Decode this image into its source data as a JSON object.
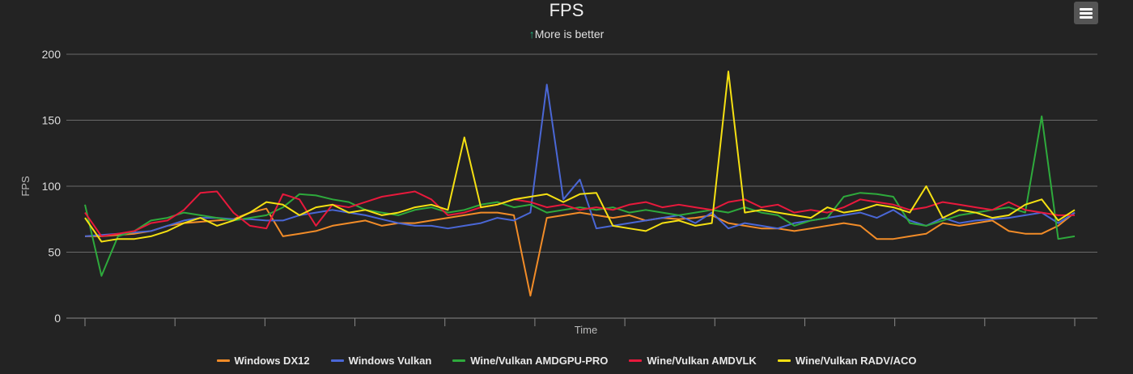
{
  "chart_data": {
    "type": "line",
    "title": "FPS",
    "subtitle": "More is better",
    "subtitle_icon": "arrow-up-icon",
    "xlabel": "Time",
    "ylabel": "FPS",
    "ylim": [
      0,
      200
    ],
    "yticks": [
      0,
      50,
      100,
      150,
      200
    ],
    "grid": true,
    "legend_position": "bottom",
    "series": [
      {
        "name": "Windows DX12",
        "color": "#f28c28",
        "values": [
          62,
          62,
          63,
          64,
          66,
          70,
          72,
          73,
          74,
          75,
          80,
          83,
          62,
          64,
          66,
          70,
          72,
          74,
          70,
          72,
          72,
          74,
          76,
          78,
          80,
          80,
          78,
          17,
          76,
          78,
          80,
          78,
          76,
          78,
          74,
          76,
          75,
          76,
          78,
          72,
          70,
          68,
          68,
          66,
          68,
          70,
          72,
          70,
          60,
          60,
          62,
          64,
          72,
          70,
          72,
          74,
          66,
          64,
          64,
          70,
          80
        ]
      },
      {
        "name": "Windows Vulkan",
        "color": "#4a67d6",
        "values": [
          62,
          63,
          64,
          65,
          66,
          70,
          74,
          76,
          76,
          75,
          75,
          74,
          74,
          78,
          80,
          82,
          80,
          78,
          75,
          72,
          70,
          70,
          68,
          70,
          72,
          76,
          74,
          80,
          177,
          90,
          105,
          68,
          70,
          72,
          74,
          76,
          78,
          72,
          80,
          68,
          72,
          70,
          68,
          72,
          74,
          76,
          78,
          80,
          76,
          82,
          74,
          70,
          76,
          72,
          74,
          75,
          76,
          78,
          80,
          72,
          80
        ]
      },
      {
        "name": "Wine/Vulkan AMDGPU-PRO",
        "color": "#2eaa3c",
        "values": [
          86,
          32,
          62,
          66,
          74,
          76,
          80,
          78,
          76,
          74,
          76,
          78,
          84,
          94,
          93,
          90,
          88,
          82,
          80,
          78,
          82,
          84,
          80,
          82,
          86,
          88,
          84,
          86,
          80,
          82,
          84,
          82,
          84,
          80,
          82,
          80,
          78,
          80,
          82,
          80,
          84,
          80,
          78,
          70,
          74,
          76,
          92,
          95,
          94,
          92,
          72,
          70,
          74,
          78,
          80,
          82,
          84,
          80,
          153,
          60,
          62
        ]
      },
      {
        "name": "Wine/Vulkan AMDVLK",
        "color": "#e8193c",
        "values": [
          80,
          62,
          64,
          66,
          72,
          74,
          82,
          95,
          96,
          80,
          70,
          68,
          94,
          90,
          70,
          86,
          84,
          88,
          92,
          94,
          96,
          90,
          78,
          80,
          84,
          86,
          90,
          88,
          84,
          86,
          82,
          84,
          82,
          86,
          88,
          84,
          86,
          84,
          82,
          88,
          90,
          84,
          86,
          80,
          82,
          80,
          84,
          90,
          88,
          86,
          82,
          84,
          88,
          86,
          84,
          82,
          88,
          82,
          80,
          78,
          78
        ]
      },
      {
        "name": "Wine/Vulkan RADV/ACO",
        "color": "#f5e012",
        "values": [
          76,
          58,
          60,
          60,
          62,
          66,
          72,
          76,
          70,
          74,
          80,
          88,
          86,
          78,
          84,
          86,
          80,
          82,
          78,
          80,
          84,
          86,
          82,
          137,
          84,
          86,
          90,
          92,
          94,
          88,
          94,
          95,
          70,
          68,
          66,
          72,
          74,
          70,
          72,
          187,
          80,
          82,
          80,
          78,
          76,
          84,
          80,
          82,
          86,
          84,
          80,
          100,
          76,
          82,
          80,
          76,
          78,
          86,
          90,
          74,
          82
        ]
      }
    ]
  },
  "menu": {
    "icon": "hamburger-menu-icon"
  }
}
